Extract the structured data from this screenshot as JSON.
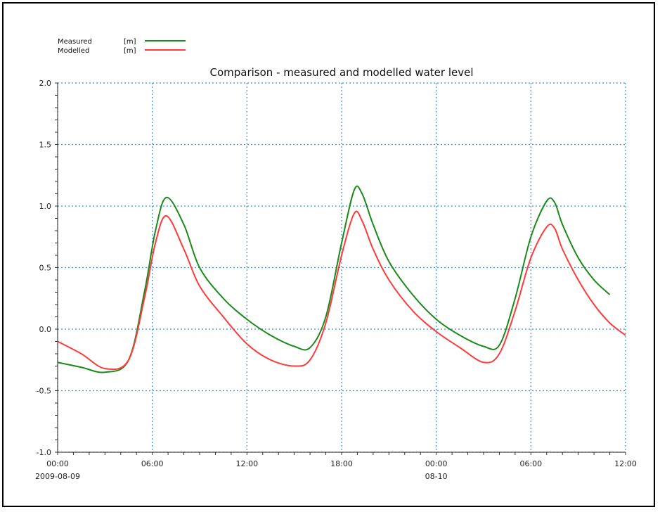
{
  "chart_data": {
    "type": "line",
    "title": "Comparison - measured and modelled water level",
    "xlabel": "",
    "ylabel": "",
    "x_ticks": [
      "00:00",
      "06:00",
      "12:00",
      "18:00",
      "00:00",
      "06:00",
      "12:00"
    ],
    "x_subticks": [
      "2009-08-09",
      "",
      "",
      "",
      "08-10",
      "",
      ""
    ],
    "x_range_hours": [
      0,
      36
    ],
    "y_ticks": [
      "2.0",
      "1.5",
      "1.0",
      "0.5",
      "0.0",
      "-0.5",
      "-1.0"
    ],
    "ylim": [
      -1.0,
      2.0
    ],
    "grid": true,
    "legend": {
      "placement": "top-left",
      "entries": [
        {
          "label": "Measured",
          "unit": "[m]"
        },
        {
          "label": "Modelled",
          "unit": "[m]"
        }
      ]
    },
    "series": [
      {
        "name": "Measured",
        "color": "#1a8a1a",
        "x": [
          0,
          1.5,
          3.0,
          4.5,
          5.5,
          6.2,
          6.9,
          8.0,
          9.0,
          10.5,
          12.0,
          13.5,
          15.0,
          16.0,
          17.0,
          18.0,
          18.8,
          19.3,
          20.0,
          21.0,
          22.5,
          24.0,
          25.5,
          27.0,
          28.0,
          29.0,
          30.0,
          31.0,
          31.5,
          32.0,
          33.0,
          34.0,
          35.0
        ],
        "y": [
          -0.27,
          -0.31,
          -0.35,
          -0.25,
          0.3,
          0.8,
          1.07,
          0.85,
          0.5,
          0.25,
          0.08,
          -0.05,
          -0.14,
          -0.15,
          0.1,
          0.7,
          1.13,
          1.1,
          0.85,
          0.55,
          0.28,
          0.08,
          -0.05,
          -0.14,
          -0.13,
          0.25,
          0.75,
          1.04,
          1.03,
          0.85,
          0.58,
          0.4,
          0.28
        ]
      },
      {
        "name": "Modelled",
        "color": "#ff3a3a",
        "x": [
          0,
          1.5,
          3.0,
          4.5,
          5.5,
          6.2,
          6.9,
          8.0,
          9.0,
          10.5,
          12.0,
          13.5,
          15.0,
          16.0,
          17.0,
          18.0,
          18.8,
          19.3,
          20.0,
          21.0,
          22.5,
          24.0,
          25.5,
          27.0,
          28.0,
          29.0,
          30.0,
          31.0,
          31.5,
          32.0,
          33.0,
          34.0,
          35.0,
          36.0
        ],
        "y": [
          -0.1,
          -0.2,
          -0.32,
          -0.25,
          0.25,
          0.7,
          0.92,
          0.65,
          0.35,
          0.1,
          -0.12,
          -0.25,
          -0.3,
          -0.25,
          0.05,
          0.6,
          0.94,
          0.88,
          0.65,
          0.4,
          0.15,
          -0.02,
          -0.15,
          -0.27,
          -0.2,
          0.15,
          0.58,
          0.83,
          0.82,
          0.65,
          0.4,
          0.2,
          0.05,
          -0.05
        ]
      }
    ]
  }
}
